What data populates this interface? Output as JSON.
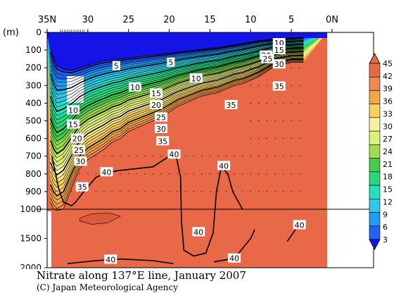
{
  "chart_data": {
    "type": "contour",
    "title": "Nitrate along 137°E line, January 2007",
    "credit": "(C) Japan Meteorological Agency",
    "y_unit": "(m)",
    "x_ticks": [
      "35N",
      "30",
      "25",
      "20",
      "15",
      "10",
      "5",
      "0N"
    ],
    "x_tick_values": [
      35,
      30,
      25,
      20,
      15,
      10,
      5,
      0
    ],
    "y_ticks_upper": [
      "0",
      "100",
      "200",
      "300",
      "400",
      "500",
      "600",
      "700",
      "800",
      "900",
      "1000"
    ],
    "y_ticks_lower": [
      "1500",
      "2000"
    ],
    "xlim": [
      35,
      0
    ],
    "ylim": [
      0,
      2000
    ],
    "y_axis_break": 1000,
    "colorbar_ticks": [
      "45",
      "42",
      "39",
      "36",
      "33",
      "30",
      "27",
      "24",
      "21",
      "18",
      "15",
      "12",
      "9",
      "6",
      "3"
    ],
    "colorbar_colors": [
      "#1414e6",
      "#1e64f0",
      "#1ea0f0",
      "#30c8e8",
      "#28e0b8",
      "#28d878",
      "#48cc50",
      "#a0dc50",
      "#dcf07c",
      "#f8f0a0",
      "#f8d060",
      "#f0a848",
      "#f08850",
      "#e86848"
    ],
    "contour_labels": [
      {
        "text": "5",
        "lat": 26.5,
        "depth": 190
      },
      {
        "text": "5",
        "lat": 19.8,
        "depth": 170
      },
      {
        "text": "10",
        "lat": 24.2,
        "depth": 310
      },
      {
        "text": "10",
        "lat": 16.7,
        "depth": 260
      },
      {
        "text": "10",
        "lat": 31.8,
        "depth": 440
      },
      {
        "text": "15",
        "lat": 21.6,
        "depth": 345
      },
      {
        "text": "15",
        "lat": 31.8,
        "depth": 520
      },
      {
        "text": "20",
        "lat": 21.6,
        "depth": 410
      },
      {
        "text": "20",
        "lat": 31.3,
        "depth": 600
      },
      {
        "text": "25",
        "lat": 21.0,
        "depth": 480
      },
      {
        "text": "25",
        "lat": 31.1,
        "depth": 665
      },
      {
        "text": "30",
        "lat": 21.0,
        "depth": 545
      },
      {
        "text": "30",
        "lat": 30.9,
        "depth": 730
      },
      {
        "text": "35",
        "lat": 20.8,
        "depth": 615
      },
      {
        "text": "35",
        "lat": 30.7,
        "depth": 875
      },
      {
        "text": "35",
        "lat": 12.4,
        "depth": 410
      },
      {
        "text": "35",
        "lat": 6.5,
        "depth": 305
      },
      {
        "text": "40",
        "lat": 27.7,
        "depth": 790
      },
      {
        "text": "40",
        "lat": 19.4,
        "depth": 690
      },
      {
        "text": "40",
        "lat": 13.3,
        "depth": 755
      },
      {
        "text": "40",
        "lat": 16.4,
        "depth": 1390
      },
      {
        "text": "40",
        "lat": 27.2,
        "depth": 1860
      },
      {
        "text": "40",
        "lat": 12.0,
        "depth": 1840
      },
      {
        "text": "40",
        "lat": 4.0,
        "depth": 1270
      },
      {
        "text": "10",
        "lat": 6.5,
        "depth": 60
      },
      {
        "text": "15",
        "lat": 6.5,
        "depth": 100
      },
      {
        "text": "20",
        "lat": 8.1,
        "depth": 130
      },
      {
        "text": "25",
        "lat": 7.9,
        "depth": 150
      },
      {
        "text": "30",
        "lat": 6.5,
        "depth": 180
      }
    ]
  }
}
